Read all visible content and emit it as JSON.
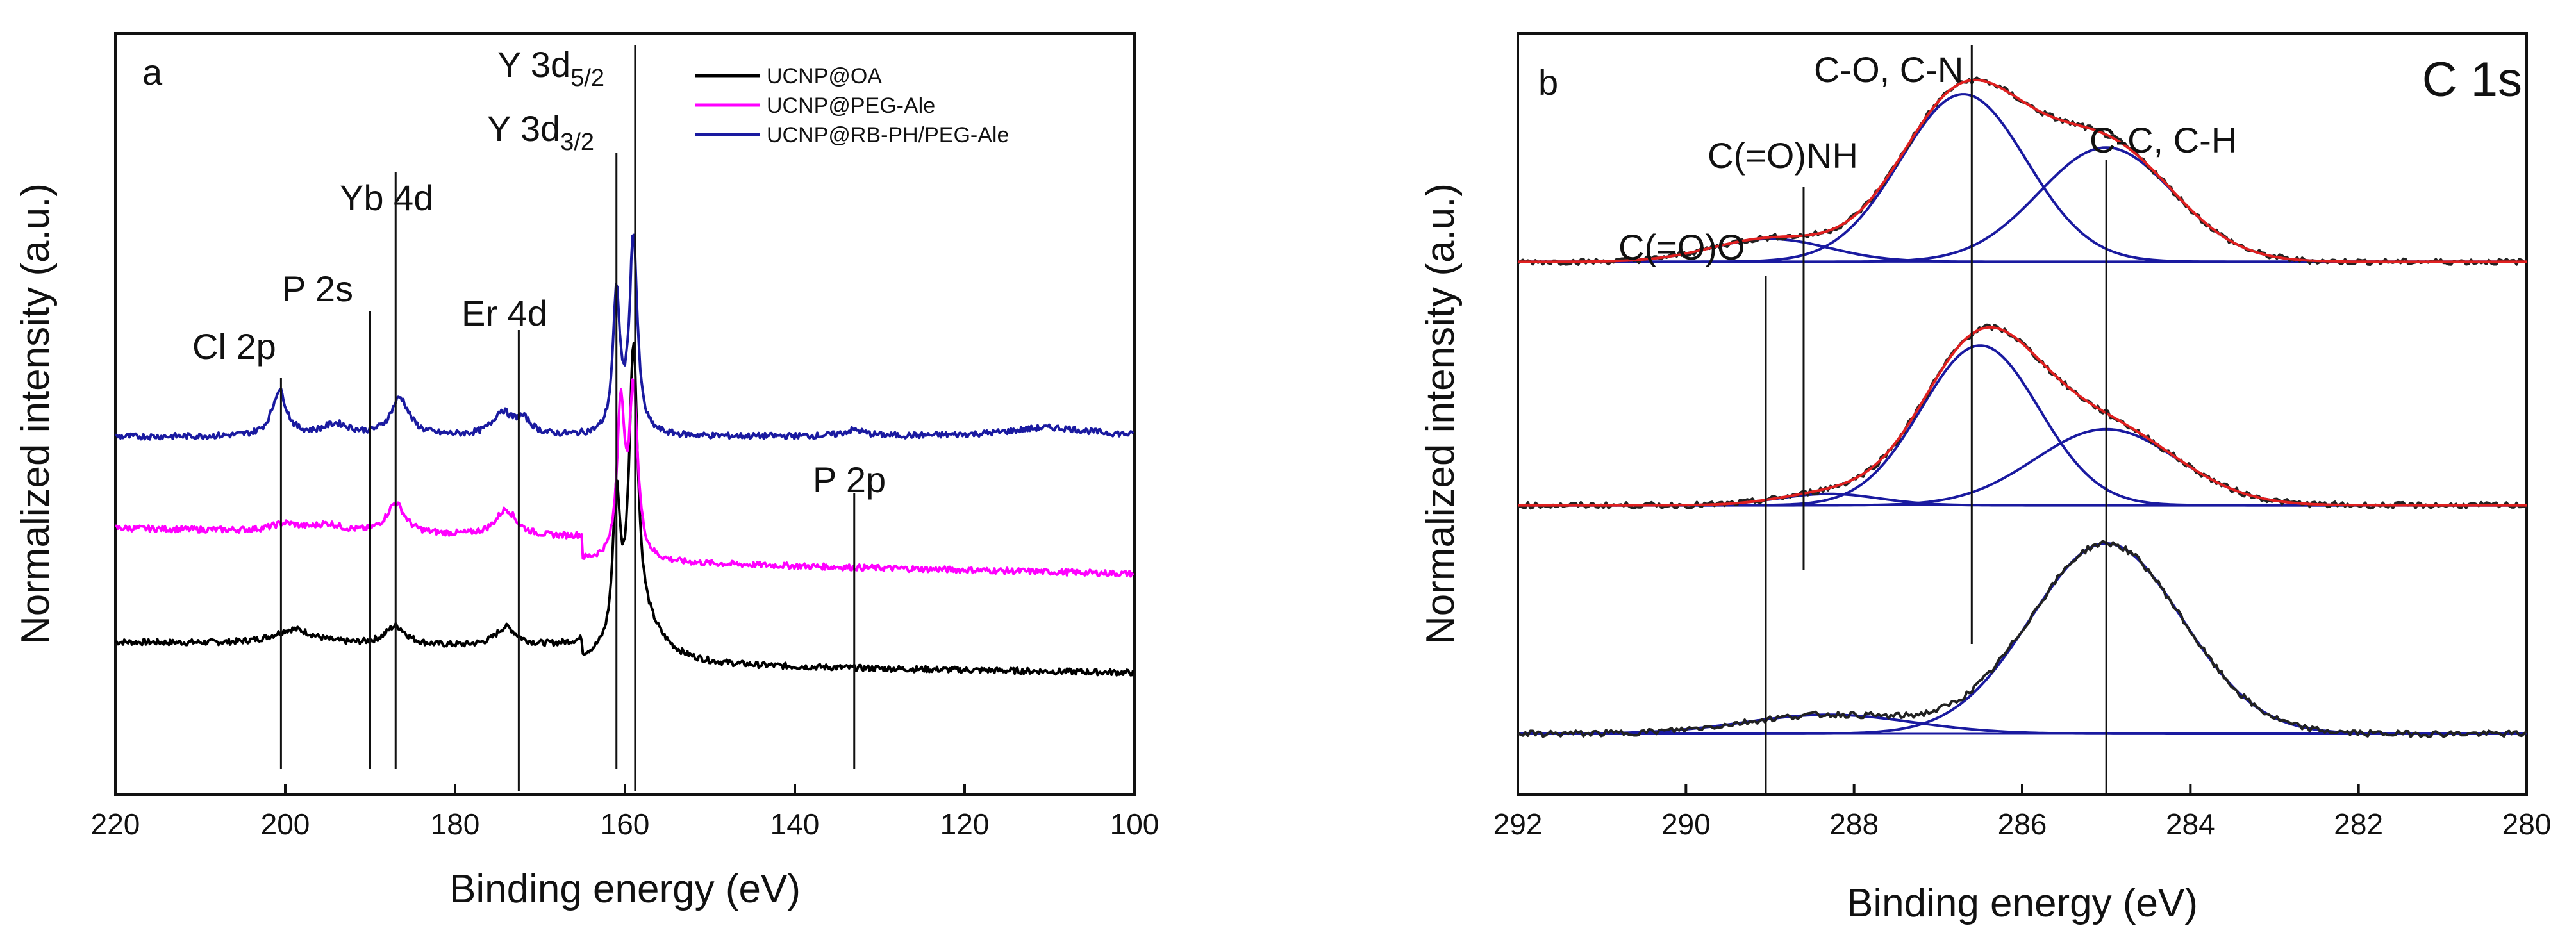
{
  "chart_data": [
    {
      "panel": "a",
      "type": "line",
      "xlabel": "Binding energy (eV)",
      "ylabel": "Normalized intensity (a.u.)",
      "xlim": [
        220,
        100
      ],
      "xticks": [
        220,
        200,
        180,
        160,
        140,
        120,
        100
      ],
      "ylim": [
        0,
        1
      ],
      "legend_position": "top-right",
      "series": [
        {
          "name": "UCNP@OA",
          "color": "#000000",
          "baseline": 0.18,
          "slope": 0.02
        },
        {
          "name": "UCNP@PEG-Ale",
          "color": "#ff00ff",
          "baseline": 0.32,
          "slope": 0.03
        },
        {
          "name": "UCNP@RB-PH/PEG-Ale",
          "color": "#1a1aa0",
          "baseline": 0.47,
          "slope": 0.0
        }
      ],
      "peaks": [
        {
          "label": "Cl 2p",
          "x": 200.5
        },
        {
          "label": "P 2s",
          "x": 190.0
        },
        {
          "label": "Yb 4d",
          "x": 187.0
        },
        {
          "label": "Er 4d",
          "x": 172.5
        },
        {
          "label": "Y 3d",
          "sub": "3/2",
          "x": 161.0
        },
        {
          "label": "Y 3d",
          "sub": "5/2",
          "x": 158.8
        },
        {
          "label": "P 2p",
          "x": 133.0
        }
      ]
    },
    {
      "panel": "b",
      "type": "line",
      "title": "C 1s",
      "xlabel": "Binding energy (eV)",
      "ylabel": "Normalized intensity (a.u.)",
      "xlim": [
        292,
        280
      ],
      "xticks": [
        292,
        290,
        288,
        286,
        284,
        282,
        280
      ],
      "ylim": [
        0,
        1
      ],
      "fit_color": "#e02020",
      "component_color": "#1a1aa0",
      "data_color": "#222222",
      "spectra": [
        {
          "baseline": 0.7,
          "components": [
            {
              "center": 289.0,
              "height": 0.03,
              "width": 0.7
            },
            {
              "center": 286.7,
              "height": 0.22,
              "width": 0.75
            },
            {
              "center": 285.0,
              "height": 0.15,
              "width": 0.8
            }
          ]
        },
        {
          "baseline": 0.38,
          "components": [
            {
              "center": 288.3,
              "height": 0.015,
              "width": 0.6
            },
            {
              "center": 286.5,
              "height": 0.21,
              "width": 0.7
            },
            {
              "center": 285.0,
              "height": 0.1,
              "width": 0.85
            }
          ]
        },
        {
          "baseline": 0.08,
          "components": [
            {
              "center": 288.3,
              "height": 0.025,
              "width": 1.0
            },
            {
              "center": 285.0,
              "height": 0.25,
              "width": 0.9
            }
          ]
        }
      ],
      "peaks": [
        {
          "label": "C(=O)O",
          "x": 289.05
        },
        {
          "label": "C(=O)NH",
          "x": 288.6
        },
        {
          "label": "C-O, C-N",
          "x": 286.6
        },
        {
          "label": "C-C, C-H",
          "x": 285.0
        }
      ]
    }
  ]
}
